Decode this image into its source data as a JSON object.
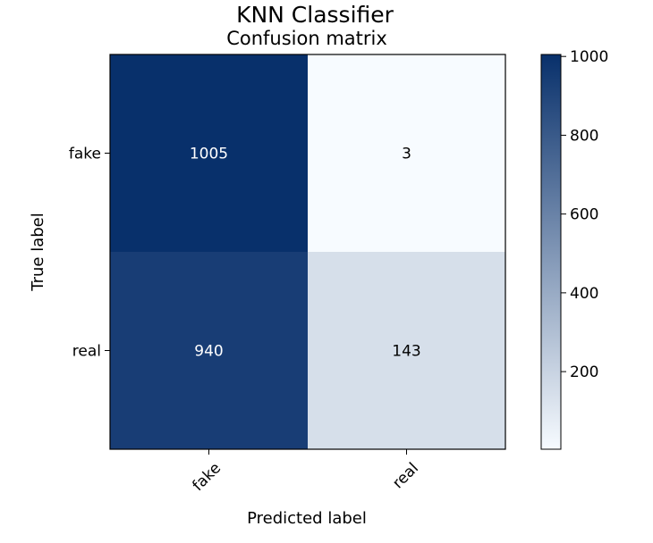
{
  "chart_data": {
    "type": "heatmap",
    "suptitle": "KNN Classifier",
    "title": "Confusion matrix",
    "xlabel": "Predicted label",
    "ylabel": "True label",
    "x_categories": [
      "fake",
      "real"
    ],
    "y_categories": [
      "fake",
      "real"
    ],
    "values": [
      [
        1005,
        3
      ],
      [
        940,
        143
      ]
    ],
    "colormap": "Blues",
    "color_low": "#f7fbff",
    "color_high": "#08306b",
    "colorbar": {
      "range": [
        3,
        1005
      ],
      "ticks": [
        200,
        400,
        600,
        800,
        1000
      ]
    },
    "cell_text_colors": {
      "dark": "#ffffff",
      "light": "#000000"
    },
    "grid": false
  }
}
